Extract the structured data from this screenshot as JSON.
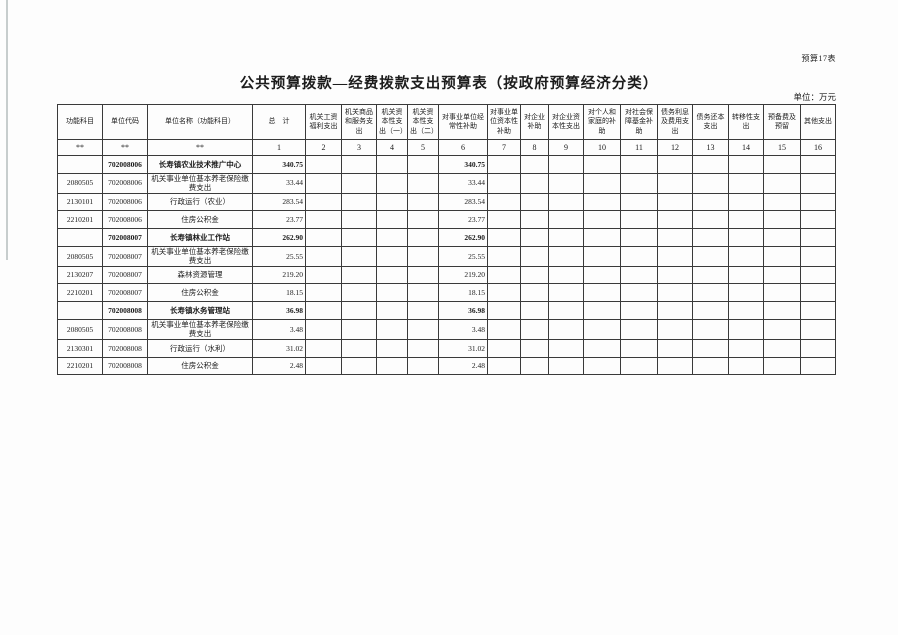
{
  "page": {
    "corner_label": "预算17表",
    "title": "公共预算拨款—经费拨款支出预算表（按政府预算经济分类）",
    "unit_label": "单位：万元"
  },
  "table": {
    "columns": [
      {
        "label": "功能科目",
        "num": "**"
      },
      {
        "label": "单位代码",
        "num": "**"
      },
      {
        "label": "单位名称（功能科目）",
        "num": "**"
      },
      {
        "label": "总　计",
        "num": "1"
      },
      {
        "label": "机关工资福利支出",
        "num": "2"
      },
      {
        "label": "机关商品和服务支出",
        "num": "3"
      },
      {
        "label": "机关资本性支出（一）",
        "num": "4"
      },
      {
        "label": "机关资本性支出（二）",
        "num": "5"
      },
      {
        "label": "对事业单位经常性补助",
        "num": "6"
      },
      {
        "label": "对事业单位资本性补助",
        "num": "7"
      },
      {
        "label": "对企业补助",
        "num": "8"
      },
      {
        "label": "对企业资本性支出",
        "num": "9"
      },
      {
        "label": "对个人和家庭的补助",
        "num": "10"
      },
      {
        "label": "对社会保障基金补助",
        "num": "11"
      },
      {
        "label": "债务利息及费用支出",
        "num": "12"
      },
      {
        "label": "债务还本支出",
        "num": "13"
      },
      {
        "label": "转移性支出",
        "num": "14"
      },
      {
        "label": "预备费及预留",
        "num": "15"
      },
      {
        "label": "其他支出",
        "num": "16"
      }
    ],
    "rows": [
      {
        "bold": true,
        "cells": [
          "",
          "702008006",
          "长寿镇农业技术推广中心",
          "340.75",
          "",
          "",
          "",
          "",
          "340.75",
          "",
          "",
          "",
          "",
          "",
          "",
          "",
          "",
          "",
          ""
        ]
      },
      {
        "bold": false,
        "cells": [
          "2080505",
          "702008006",
          "机关事业单位基本养老保险缴费支出",
          "33.44",
          "",
          "",
          "",
          "",
          "33.44",
          "",
          "",
          "",
          "",
          "",
          "",
          "",
          "",
          "",
          ""
        ]
      },
      {
        "bold": false,
        "cells": [
          "2130101",
          "702008006",
          "行政运行（农业）",
          "283.54",
          "",
          "",
          "",
          "",
          "283.54",
          "",
          "",
          "",
          "",
          "",
          "",
          "",
          "",
          "",
          ""
        ]
      },
      {
        "bold": false,
        "cells": [
          "2210201",
          "702008006",
          "住房公积金",
          "23.77",
          "",
          "",
          "",
          "",
          "23.77",
          "",
          "",
          "",
          "",
          "",
          "",
          "",
          "",
          "",
          ""
        ]
      },
      {
        "bold": true,
        "cells": [
          "",
          "702008007",
          "长寿镇林业工作站",
          "262.90",
          "",
          "",
          "",
          "",
          "262.90",
          "",
          "",
          "",
          "",
          "",
          "",
          "",
          "",
          "",
          ""
        ]
      },
      {
        "bold": false,
        "cells": [
          "2080505",
          "702008007",
          "机关事业单位基本养老保险缴费支出",
          "25.55",
          "",
          "",
          "",
          "",
          "25.55",
          "",
          "",
          "",
          "",
          "",
          "",
          "",
          "",
          "",
          ""
        ]
      },
      {
        "bold": false,
        "cells": [
          "2130207",
          "702008007",
          "森林资源管理",
          "219.20",
          "",
          "",
          "",
          "",
          "219.20",
          "",
          "",
          "",
          "",
          "",
          "",
          "",
          "",
          "",
          ""
        ]
      },
      {
        "bold": false,
        "cells": [
          "2210201",
          "702008007",
          "住房公积金",
          "18.15",
          "",
          "",
          "",
          "",
          "18.15",
          "",
          "",
          "",
          "",
          "",
          "",
          "",
          "",
          "",
          ""
        ]
      },
      {
        "bold": true,
        "cells": [
          "",
          "702008008",
          "长寿镇水务管理站",
          "36.98",
          "",
          "",
          "",
          "",
          "36.98",
          "",
          "",
          "",
          "",
          "",
          "",
          "",
          "",
          "",
          ""
        ]
      },
      {
        "bold": false,
        "cells": [
          "2080505",
          "702008008",
          "机关事业单位基本养老保险缴费支出",
          "3.48",
          "",
          "",
          "",
          "",
          "3.48",
          "",
          "",
          "",
          "",
          "",
          "",
          "",
          "",
          "",
          ""
        ]
      },
      {
        "bold": false,
        "cells": [
          "2130301",
          "702008008",
          "行政运行（水利）",
          "31.02",
          "",
          "",
          "",
          "",
          "31.02",
          "",
          "",
          "",
          "",
          "",
          "",
          "",
          "",
          "",
          ""
        ]
      },
      {
        "bold": false,
        "cells": [
          "2210201",
          "702008008",
          "住房公积金",
          "2.48",
          "",
          "",
          "",
          "",
          "2.48",
          "",
          "",
          "",
          "",
          "",
          "",
          "",
          "",
          "",
          ""
        ]
      }
    ]
  }
}
